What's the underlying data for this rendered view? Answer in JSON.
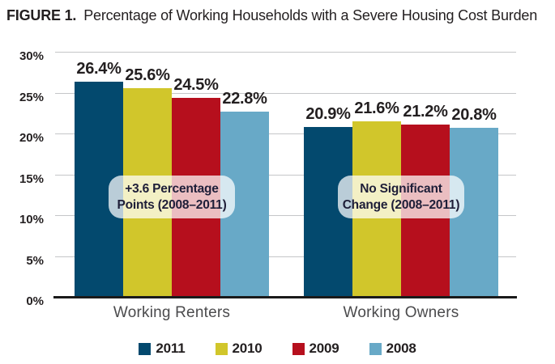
{
  "title": {
    "label": "FIGURE 1.",
    "text": "Percentage of Working Households with a Severe Housing Cost Burden"
  },
  "colors": {
    "axis_line": "#1a1a1a",
    "gridline": "#c5c6c8",
    "text": "#231f20",
    "category_label": "#4b4b4d",
    "annotation_background": "rgba(255,255,255,0.73)"
  },
  "chart_data": {
    "type": "bar",
    "title": "Percentage of Working Households with a Severe Housing Cost Burden",
    "categories": [
      "Working Renters",
      "Working Owners"
    ],
    "series": [
      {
        "name": "2011",
        "color": "#03496e",
        "values": [
          26.4,
          20.9
        ],
        "labels": [
          "26.4%",
          "20.9%"
        ]
      },
      {
        "name": "2010",
        "color": "#d1c62b",
        "values": [
          25.6,
          21.6
        ],
        "labels": [
          "25.6%",
          "21.6%"
        ]
      },
      {
        "name": "2009",
        "color": "#b60f1d",
        "values": [
          24.5,
          21.2
        ],
        "labels": [
          "24.5%",
          "21.2%"
        ]
      },
      {
        "name": "2008",
        "color": "#68a9c7",
        "values": [
          22.8,
          20.8
        ],
        "labels": [
          "22.8%",
          "20.8%"
        ]
      }
    ],
    "ylim": [
      0,
      30
    ],
    "yticks": [
      0,
      5,
      10,
      15,
      20,
      25,
      30
    ],
    "ytick_labels": [
      "0%",
      "5%",
      "10%",
      "15%",
      "20%",
      "25%",
      "30%"
    ],
    "grid": true,
    "legend_position": "bottom",
    "annotations": [
      {
        "category": "Working Renters",
        "lines": [
          "+3.6 Percentage",
          "Points (2008–2011)"
        ]
      },
      {
        "category": "Working Owners",
        "lines": [
          "No Significant",
          "Change (2008–2011)"
        ]
      }
    ]
  }
}
